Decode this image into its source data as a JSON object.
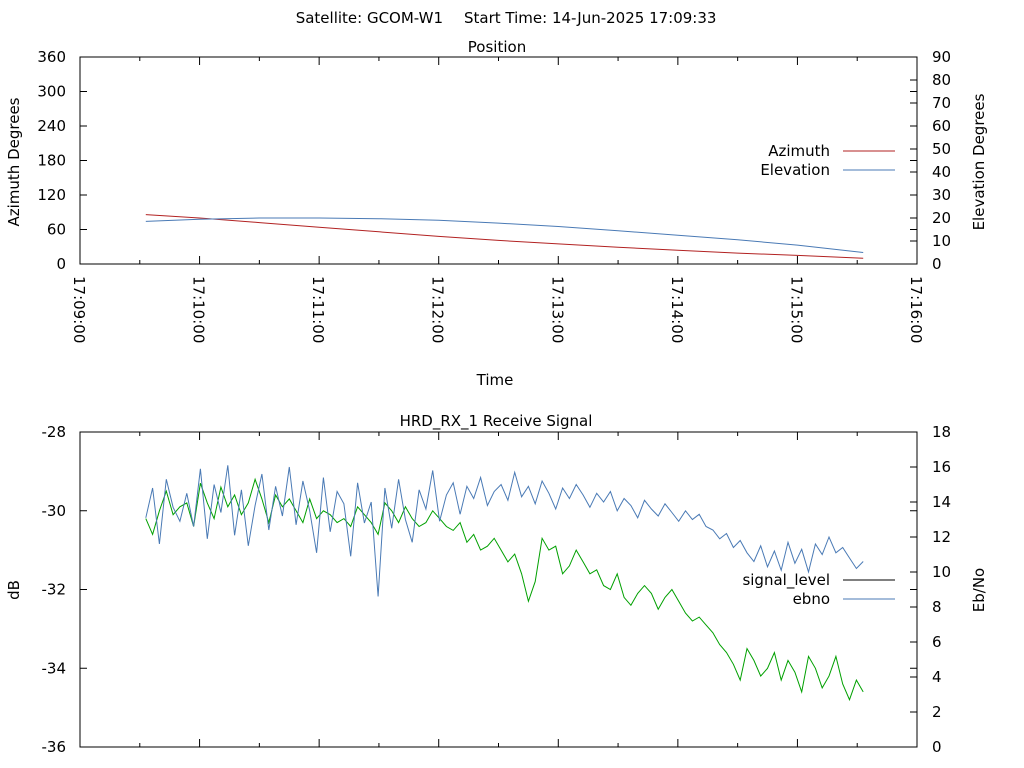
{
  "header": {
    "satellite": "Satellite: GCOM-W1",
    "start_time": "Start Time: 14-Jun-2025 17:09:33"
  },
  "chart_data": [
    {
      "type": "line",
      "title": "Position",
      "xlabel": "Time",
      "ylabel": "Azimuth Degrees",
      "y2label": "Elevation Degrees",
      "xlim": [
        "17:09:00",
        "17:16:00"
      ],
      "ylim": [
        0,
        360
      ],
      "y2lim": [
        0,
        90
      ],
      "x_ticks": [
        "17:09:00",
        "17:10:00",
        "17:11:00",
        "17:12:00",
        "17:13:00",
        "17:14:00",
        "17:15:00",
        "17:16:00"
      ],
      "y_ticks": [
        "0",
        "60",
        "120",
        "180",
        "240",
        "300",
        "360"
      ],
      "y2_ticks": [
        "0",
        "10",
        "20",
        "30",
        "40",
        "50",
        "60",
        "70",
        "80",
        "90"
      ],
      "legend_position": "right",
      "grid": false,
      "series": [
        {
          "name": "Azimuth",
          "axis": "y",
          "color": "#b22222",
          "x": [
            "17:09:33",
            "17:10:00",
            "17:10:30",
            "17:11:00",
            "17:11:30",
            "17:12:00",
            "17:12:30",
            "17:13:00",
            "17:13:30",
            "17:14:00",
            "17:14:30",
            "17:15:00",
            "17:15:33"
          ],
          "values": [
            86,
            80,
            72,
            64,
            56,
            48,
            41,
            35,
            29,
            24,
            19,
            15,
            10
          ]
        },
        {
          "name": "Elevation",
          "axis": "y2",
          "color": "#4a7ab5",
          "x": [
            "17:09:33",
            "17:10:00",
            "17:10:30",
            "17:11:00",
            "17:11:30",
            "17:12:00",
            "17:12:30",
            "17:13:00",
            "17:13:30",
            "17:14:00",
            "17:14:30",
            "17:15:00",
            "17:15:33"
          ],
          "values": [
            18.5,
            19.5,
            20,
            20,
            19.7,
            19,
            17.8,
            16.3,
            14.5,
            12.5,
            10.5,
            8.2,
            5
          ]
        }
      ]
    },
    {
      "type": "line",
      "title": "HRD_RX_1 Receive Signal",
      "xlabel": "",
      "ylabel": "dB",
      "y2label": "Eb/No",
      "xlim": [
        "17:09:00",
        "17:16:00"
      ],
      "ylim": [
        -36,
        -28
      ],
      "y2lim": [
        0,
        18
      ],
      "y_ticks": [
        "-36",
        "-34",
        "-32",
        "-30",
        "-28"
      ],
      "y2_ticks": [
        "0",
        "2",
        "4",
        "6",
        "8",
        "10",
        "12",
        "14",
        "16",
        "18"
      ],
      "legend_position": "right",
      "grid": false,
      "legend": [
        {
          "name": "signal_level",
          "color": "#000000"
        },
        {
          "name": "ebno",
          "color": "#4a7ab5"
        }
      ],
      "series": [
        {
          "name": "signal_level",
          "axis": "y",
          "color": "#00a000",
          "x_start": "17:09:33",
          "x_end": "17:15:33",
          "values": [
            -30.2,
            -30.6,
            -30.0,
            -29.5,
            -30.1,
            -29.9,
            -29.8,
            -30.4,
            -29.3,
            -29.8,
            -30.2,
            -29.4,
            -29.9,
            -29.6,
            -30.1,
            -29.8,
            -29.2,
            -29.7,
            -30.3,
            -29.6,
            -29.9,
            -29.7,
            -30.0,
            -30.3,
            -29.7,
            -30.2,
            -30.0,
            -30.1,
            -30.3,
            -30.2,
            -30.4,
            -29.9,
            -30.1,
            -30.3,
            -30.6,
            -29.8,
            -30.0,
            -30.3,
            -29.9,
            -30.2,
            -30.4,
            -30.3,
            -30.0,
            -30.2,
            -30.4,
            -30.5,
            -30.3,
            -30.8,
            -30.6,
            -31.0,
            -30.9,
            -30.7,
            -31.0,
            -31.3,
            -31.1,
            -31.6,
            -32.3,
            -31.8,
            -30.7,
            -31.0,
            -30.9,
            -31.6,
            -31.4,
            -31.0,
            -31.3,
            -31.6,
            -31.5,
            -31.9,
            -32.0,
            -31.6,
            -32.2,
            -32.4,
            -32.1,
            -31.9,
            -32.1,
            -32.5,
            -32.2,
            -32.0,
            -32.3,
            -32.6,
            -32.8,
            -32.7,
            -32.9,
            -33.1,
            -33.4,
            -33.6,
            -33.9,
            -34.3,
            -33.5,
            -33.8,
            -34.2,
            -34.0,
            -33.6,
            -34.3,
            -33.8,
            -34.1,
            -34.6,
            -33.7,
            -34.0,
            -34.5,
            -34.2,
            -33.7,
            -34.4,
            -34.8,
            -34.3,
            -34.6
          ]
        },
        {
          "name": "ebno",
          "axis": "y2",
          "color": "#4a7ab5",
          "x_start": "17:09:33",
          "x_end": "17:15:33",
          "values": [
            13.1,
            14.8,
            11.6,
            15.3,
            13.7,
            12.9,
            14.5,
            12.6,
            15.9,
            11.9,
            15.0,
            13.4,
            16.1,
            12.1,
            14.7,
            11.5,
            13.8,
            15.6,
            12.4,
            14.9,
            13.2,
            16.0,
            12.7,
            15.2,
            13.5,
            11.1,
            15.4,
            12.3,
            14.6,
            13.9,
            10.9,
            15.1,
            12.8,
            14.0,
            8.6,
            14.8,
            12.5,
            15.3,
            13.0,
            11.7,
            14.7,
            13.6,
            15.8,
            12.9,
            14.4,
            15.1,
            13.3,
            14.9,
            14.2,
            15.4,
            13.8,
            14.6,
            15.0,
            14.1,
            15.7,
            14.3,
            14.9,
            13.9,
            15.2,
            14.5,
            13.6,
            14.8,
            14.2,
            15.0,
            14.4,
            13.7,
            14.5,
            14.0,
            14.6,
            13.5,
            14.2,
            13.8,
            13.1,
            14.1,
            13.6,
            13.2,
            13.9,
            13.4,
            12.9,
            13.5,
            13.0,
            13.3,
            12.6,
            12.4,
            11.9,
            12.2,
            11.4,
            11.8,
            11.1,
            10.6,
            11.5,
            10.3,
            11.2,
            10.1,
            11.7,
            10.5,
            11.3,
            10.0,
            11.6,
            11.0,
            12.0,
            11.1,
            11.4,
            10.8,
            10.2,
            10.6
          ]
        }
      ]
    }
  ]
}
